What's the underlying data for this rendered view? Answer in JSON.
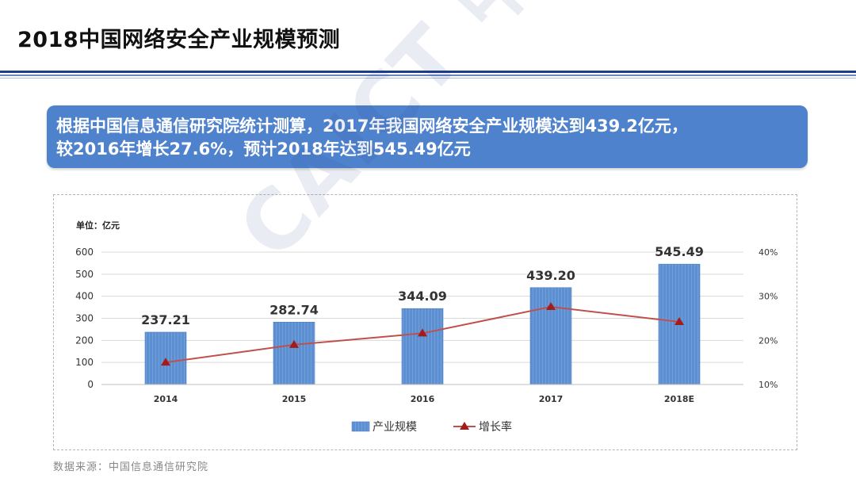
{
  "page": {
    "title": "2018中国网络安全产业规模预测",
    "banner_line1": "根据中国信息通信研究院统计测算，2017年我国网络安全产业规模达到439.2亿元，",
    "banner_line2": "较2016年增长27.6%，预计2018年达到545.49亿元",
    "watermark": "CAICT 中国信通院",
    "source": "数据来源：中国信息通信研究院"
  },
  "chart_data": {
    "type": "bar",
    "unit_label": "单位：亿元",
    "categories": [
      "2014",
      "2015",
      "2016",
      "2017",
      "2018E"
    ],
    "series": [
      {
        "name": "产业规模",
        "kind": "bar",
        "axis": "left",
        "values": [
          237.21,
          282.74,
          344.09,
          439.2,
          545.49
        ],
        "labels": [
          "237.21",
          "282.74",
          "344.09",
          "439.20",
          "545.49"
        ],
        "color": "#5b8fd2"
      },
      {
        "name": "增长率",
        "kind": "line",
        "axis": "right",
        "values": [
          15,
          19,
          21.6,
          27.6,
          24.2
        ],
        "color": "#c0504d"
      }
    ],
    "y_left": {
      "min": 0,
      "max": 600,
      "ticks": [
        "0",
        "100",
        "200",
        "300",
        "400",
        "500",
        "600"
      ]
    },
    "y_right": {
      "min": 10,
      "max": 40,
      "ticks": [
        "10%",
        "20%",
        "30%",
        "40%"
      ]
    },
    "grid": true,
    "legend_position": "bottom"
  }
}
